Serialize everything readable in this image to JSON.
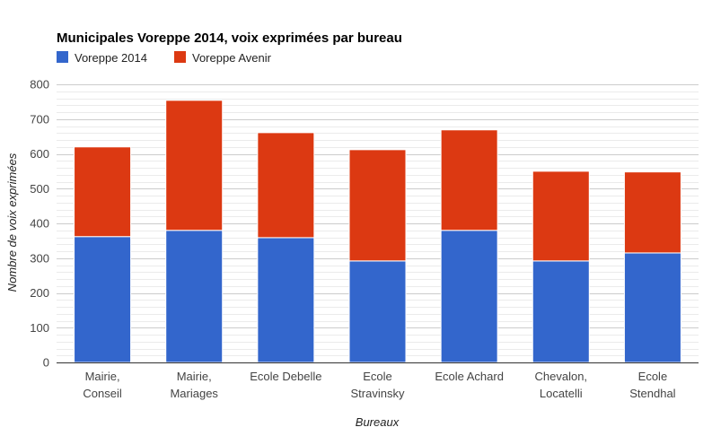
{
  "chart_data": {
    "type": "bar",
    "stacked": true,
    "title": "Municipales Voreppe 2014, voix exprimées par bureau",
    "xlabel": "Bureaux",
    "ylabel": "Nombre de voix exprimées",
    "ylim": [
      0,
      800
    ],
    "yticks": [
      "0",
      "100",
      "200",
      "300",
      "400",
      "500",
      "600",
      "700",
      "800"
    ],
    "grid": true,
    "legend_position": "top-left",
    "categories": [
      [
        "Mairie,",
        "Conseil"
      ],
      [
        "Mairie,",
        "Mariages"
      ],
      [
        "Ecole Debelle"
      ],
      [
        "Ecole",
        "Stravinsky"
      ],
      [
        "Ecole Achard"
      ],
      [
        "Chevalon,",
        "Locatelli"
      ],
      [
        "Ecole",
        "Stendhal"
      ]
    ],
    "series": [
      {
        "name": "Voreppe 2014",
        "color": "#3366cc",
        "values": [
          362,
          380,
          359,
          292,
          380,
          292,
          315
        ]
      },
      {
        "name": "Voreppe Avenir",
        "color": "#dc3912",
        "values": [
          258,
          374,
          302,
          320,
          289,
          258,
          233
        ]
      }
    ]
  }
}
